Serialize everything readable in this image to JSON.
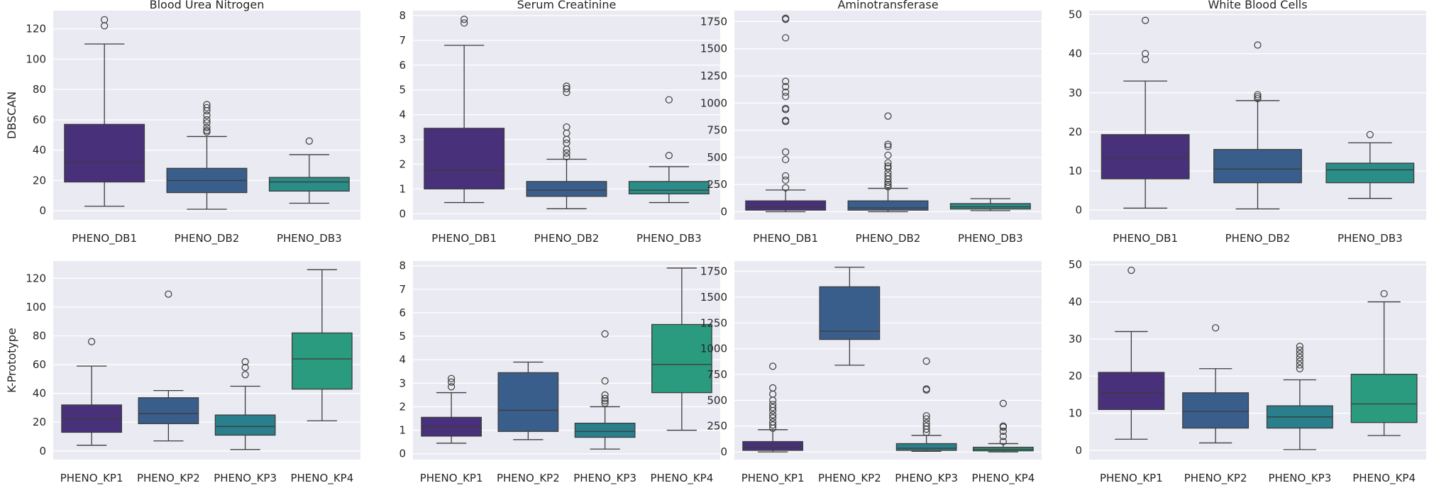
{
  "figure": {
    "row_labels": [
      "DBSCAN",
      "K-Prototype"
    ],
    "colors": {
      "background": "#eaeaf2",
      "grid": "#ffffff",
      "box_edge": "#3c3c3c",
      "palettes": {
        "db": [
          "#48307a",
          "#3a5e8c",
          "#2a8d88"
        ],
        "kp": [
          "#48307a",
          "#3a5e8c",
          "#2a7f8c",
          "#2a9b7e"
        ]
      }
    }
  },
  "chart_data": [
    {
      "type": "box",
      "title": "Blood Urea Nitrogen",
      "ylabel": "DBSCAN",
      "categories": [
        "PHENO_DB1",
        "PHENO_DB2",
        "PHENO_DB3"
      ],
      "yticks": [
        0,
        20,
        40,
        60,
        80,
        100,
        120
      ],
      "ytick_labels": [
        "0",
        "20",
        "40",
        "60",
        "80",
        "100",
        "120"
      ],
      "ylim": [
        -6,
        132
      ],
      "grid": true,
      "boxes": [
        {
          "whislo": 3,
          "q1": 19,
          "med": 32,
          "q3": 57,
          "whishi": 110,
          "fliers": [
            122,
            126
          ]
        },
        {
          "whislo": 1,
          "q1": 12,
          "med": 20,
          "q3": 28,
          "whishi": 49,
          "fliers": [
            52,
            53,
            55,
            58,
            60,
            63,
            66,
            68,
            70
          ]
        },
        {
          "whislo": 5,
          "q1": 13,
          "med": 19,
          "q3": 22,
          "whishi": 37,
          "fliers": [
            46
          ]
        }
      ]
    },
    {
      "type": "box",
      "title": "Serum Creatinine",
      "ylabel": "",
      "categories": [
        "PHENO_DB1",
        "PHENO_DB2",
        "PHENO_DB3"
      ],
      "yticks": [
        0,
        1,
        2,
        3,
        4,
        5,
        6,
        7,
        8
      ],
      "ytick_labels": [
        "0",
        "1",
        "2",
        "3",
        "4",
        "5",
        "6",
        "7",
        "8"
      ],
      "ylim": [
        -0.25,
        8.2
      ],
      "grid": true,
      "boxes": [
        {
          "whislo": 0.45,
          "q1": 1.0,
          "med": 1.75,
          "q3": 3.45,
          "whishi": 6.8,
          "fliers": [
            7.7,
            7.85
          ]
        },
        {
          "whislo": 0.2,
          "q1": 0.7,
          "med": 0.95,
          "q3": 1.3,
          "whishi": 2.2,
          "fliers": [
            2.3,
            2.45,
            2.6,
            2.85,
            3.0,
            3.25,
            3.5,
            4.9,
            5.05,
            5.15
          ]
        },
        {
          "whislo": 0.45,
          "q1": 0.8,
          "med": 0.95,
          "q3": 1.3,
          "whishi": 1.9,
          "fliers": [
            2.35,
            4.6
          ]
        }
      ]
    },
    {
      "type": "box",
      "title": "Aminotransferase",
      "ylabel": "",
      "categories": [
        "PHENO_DB1",
        "PHENO_DB2",
        "PHENO_DB3"
      ],
      "yticks": [
        0,
        250,
        500,
        750,
        1000,
        1250,
        1500,
        1750
      ],
      "ytick_labels": [
        "0",
        "250",
        "500",
        "750",
        "1000",
        "1250",
        "1500",
        "1750"
      ],
      "ylim": [
        -75,
        1850
      ],
      "grid": true,
      "boxes": [
        {
          "whislo": 0,
          "q1": 15,
          "med": 40,
          "q3": 100,
          "whishi": 200,
          "fliers": [
            220,
            290,
            330,
            480,
            550,
            830,
            840,
            940,
            950,
            1060,
            1100,
            1150,
            1200,
            1600,
            1770,
            1780
          ]
        },
        {
          "whislo": 0,
          "q1": 15,
          "med": 35,
          "q3": 100,
          "whishi": 215,
          "fliers": [
            230,
            250,
            270,
            300,
            330,
            360,
            400,
            420,
            450,
            520,
            600,
            620,
            880
          ]
        },
        {
          "whislo": 10,
          "q1": 25,
          "med": 45,
          "q3": 75,
          "whishi": 120,
          "fliers": []
        }
      ]
    },
    {
      "type": "box",
      "title": "White Blood Cells",
      "ylabel": "",
      "categories": [
        "PHENO_DB1",
        "PHENO_DB2",
        "PHENO_DB3"
      ],
      "yticks": [
        0,
        10,
        20,
        30,
        40,
        50
      ],
      "ytick_labels": [
        "0",
        "10",
        "20",
        "30",
        "40",
        "50"
      ],
      "ylim": [
        -2.5,
        51
      ],
      "grid": true,
      "boxes": [
        {
          "whislo": 0.5,
          "q1": 8,
          "med": 13.5,
          "q3": 19.3,
          "whishi": 33,
          "fliers": [
            38.5,
            40,
            48.5
          ]
        },
        {
          "whislo": 0.3,
          "q1": 7,
          "med": 10.5,
          "q3": 15.5,
          "whishi": 28,
          "fliers": [
            28.5,
            29,
            29.5,
            42.2
          ]
        },
        {
          "whislo": 3,
          "q1": 7,
          "med": 10.3,
          "q3": 12,
          "whishi": 17.2,
          "fliers": [
            19.3
          ]
        }
      ]
    },
    {
      "type": "box",
      "title": "",
      "ylabel": "K-Prototype",
      "categories": [
        "PHENO_KP1",
        "PHENO_KP2",
        "PHENO_KP3",
        "PHENO_KP4"
      ],
      "yticks": [
        0,
        20,
        40,
        60,
        80,
        100,
        120
      ],
      "ytick_labels": [
        "0",
        "20",
        "40",
        "60",
        "80",
        "100",
        "120"
      ],
      "ylim": [
        -6,
        132
      ],
      "grid": true,
      "boxes": [
        {
          "whislo": 4,
          "q1": 13,
          "med": 22,
          "q3": 32,
          "whishi": 59,
          "fliers": [
            76
          ]
        },
        {
          "whislo": 7,
          "q1": 19,
          "med": 26,
          "q3": 37,
          "whishi": 42,
          "fliers": [
            109
          ]
        },
        {
          "whislo": 1,
          "q1": 11,
          "med": 17,
          "q3": 25,
          "whishi": 45,
          "fliers": [
            53,
            58,
            62
          ]
        },
        {
          "whislo": 21,
          "q1": 43,
          "med": 64,
          "q3": 82,
          "whishi": 126,
          "fliers": []
        }
      ]
    },
    {
      "type": "box",
      "title": "",
      "ylabel": "",
      "categories": [
        "PHENO_KP1",
        "PHENO_KP2",
        "PHENO_KP3",
        "PHENO_KP4"
      ],
      "yticks": [
        0,
        1,
        2,
        3,
        4,
        5,
        6,
        7,
        8
      ],
      "ytick_labels": [
        "0",
        "1",
        "2",
        "3",
        "4",
        "5",
        "6",
        "7",
        "8"
      ],
      "ylim": [
        -0.25,
        8.2
      ],
      "grid": true,
      "boxes": [
        {
          "whislo": 0.45,
          "q1": 0.75,
          "med": 1.15,
          "q3": 1.55,
          "whishi": 2.6,
          "fliers": [
            2.85,
            3.05,
            3.2
          ]
        },
        {
          "whislo": 0.6,
          "q1": 0.95,
          "med": 1.85,
          "q3": 3.45,
          "whishi": 3.9,
          "fliers": []
        },
        {
          "whislo": 0.2,
          "q1": 0.7,
          "med": 0.95,
          "q3": 1.3,
          "whishi": 2.0,
          "fliers": [
            2.15,
            2.25,
            2.35,
            2.5,
            3.1,
            5.1
          ]
        },
        {
          "whislo": 1.0,
          "q1": 2.6,
          "med": 3.8,
          "q3": 5.5,
          "whishi": 7.9,
          "fliers": []
        }
      ]
    },
    {
      "type": "box",
      "title": "",
      "ylabel": "",
      "categories": [
        "PHENO_KP1",
        "PHENO_KP2",
        "PHENO_KP3",
        "PHENO_KP4"
      ],
      "yticks": [
        0,
        250,
        500,
        750,
        1000,
        1250,
        1500,
        1750
      ],
      "ytick_labels": [
        "0",
        "250",
        "500",
        "750",
        "1000",
        "1250",
        "1500",
        "1750"
      ],
      "ylim": [
        -75,
        1850
      ],
      "grid": true,
      "boxes": [
        {
          "whislo": 0,
          "q1": 15,
          "med": 45,
          "q3": 100,
          "whishi": 215,
          "fliers": [
            230,
            260,
            290,
            330,
            360,
            400,
            430,
            460,
            500,
            560,
            620,
            830
          ]
        },
        {
          "whislo": 840,
          "q1": 1090,
          "med": 1170,
          "q3": 1600,
          "whishi": 1790,
          "fliers": []
        },
        {
          "whislo": 5,
          "q1": 15,
          "med": 35,
          "q3": 80,
          "whishi": 160,
          "fliers": [
            190,
            220,
            250,
            280,
            320,
            350,
            600,
            610,
            880
          ]
        },
        {
          "whislo": 0,
          "q1": 10,
          "med": 25,
          "q3": 45,
          "whishi": 80,
          "fliers": [
            100,
            150,
            200,
            240,
            250,
            470
          ]
        }
      ]
    },
    {
      "type": "box",
      "title": "",
      "ylabel": "",
      "categories": [
        "PHENO_KP1",
        "PHENO_KP2",
        "PHENO_KP3",
        "PHENO_KP4"
      ],
      "yticks": [
        0,
        10,
        20,
        30,
        40,
        50
      ],
      "ytick_labels": [
        "0",
        "10",
        "20",
        "30",
        "40",
        "50"
      ],
      "ylim": [
        -2.5,
        51
      ],
      "grid": true,
      "boxes": [
        {
          "whislo": 3,
          "q1": 11,
          "med": 15.5,
          "q3": 21,
          "whishi": 32,
          "fliers": [
            48.5
          ]
        },
        {
          "whislo": 2,
          "q1": 6,
          "med": 10.5,
          "q3": 15.5,
          "whishi": 22,
          "fliers": [
            33
          ]
        },
        {
          "whislo": 0.2,
          "q1": 6,
          "med": 9,
          "q3": 12,
          "whishi": 19,
          "fliers": [
            22,
            23,
            24,
            25,
            26,
            27,
            28
          ]
        },
        {
          "whislo": 4,
          "q1": 7.5,
          "med": 12.5,
          "q3": 20.5,
          "whishi": 40,
          "fliers": [
            42.2
          ]
        }
      ]
    }
  ]
}
